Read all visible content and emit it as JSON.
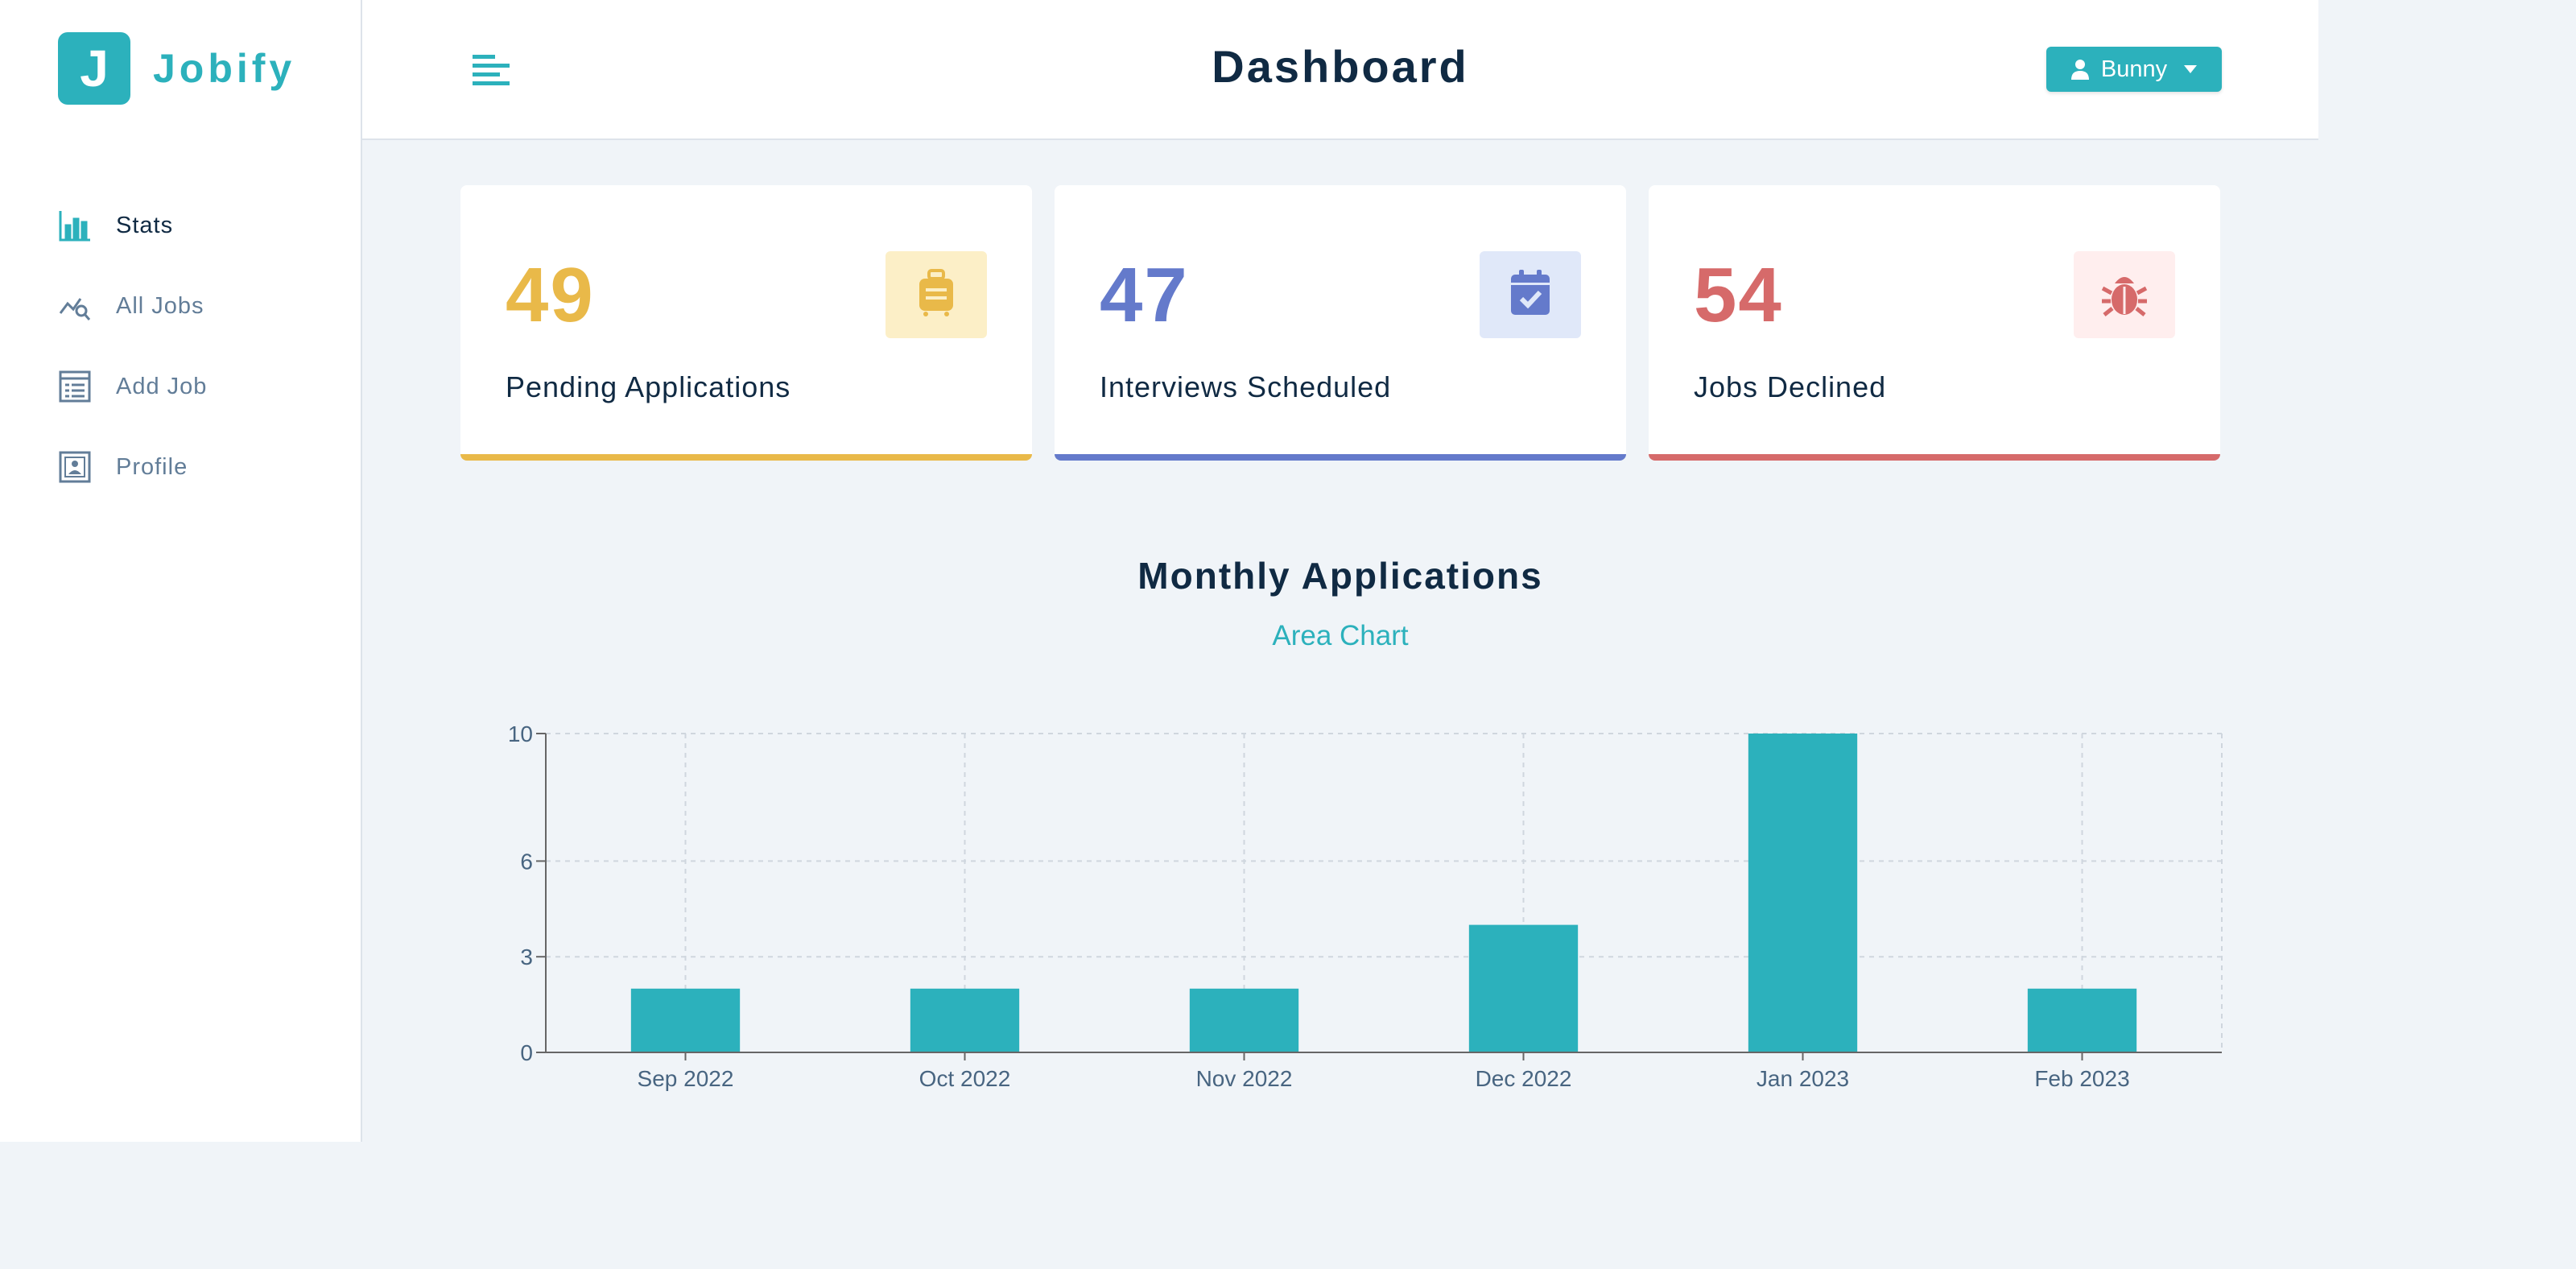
{
  "app": {
    "logo_letter": "J",
    "name": "Jobify"
  },
  "sidebar": {
    "items": [
      {
        "label": "Stats",
        "icon": "bar-chart-icon",
        "active": true
      },
      {
        "label": "All Jobs",
        "icon": "query-stats-icon",
        "active": false
      },
      {
        "label": "Add Job",
        "icon": "form-icon",
        "active": false
      },
      {
        "label": "Profile",
        "icon": "id-card-icon",
        "active": false
      }
    ]
  },
  "header": {
    "title": "Dashboard",
    "user": "Bunny"
  },
  "stats": [
    {
      "count": "49",
      "label": "Pending Applications",
      "color": "#e9b949",
      "bg": "#fcefc7",
      "icon": "suitcase-icon"
    },
    {
      "count": "47",
      "label": "Interviews Scheduled",
      "color": "#647acb",
      "bg": "#e0e8f9",
      "icon": "calendar-check-icon"
    },
    {
      "count": "54",
      "label": "Jobs Declined",
      "color": "#d66a6a",
      "bg": "#ffeeee",
      "icon": "bug-icon"
    }
  ],
  "chart": {
    "heading": "Monthly Applications",
    "toggle_label": "Area Chart"
  },
  "chart_data": {
    "type": "bar",
    "categories": [
      "Sep 2022",
      "Oct 2022",
      "Nov 2022",
      "Dec 2022",
      "Jan 2023",
      "Feb 2023"
    ],
    "values": [
      2,
      2,
      2,
      4,
      10,
      2
    ],
    "yticks": [
      0,
      3,
      6,
      10
    ],
    "ylim": [
      0,
      10
    ],
    "grid": true,
    "bar_color": "#2cb1bc"
  }
}
